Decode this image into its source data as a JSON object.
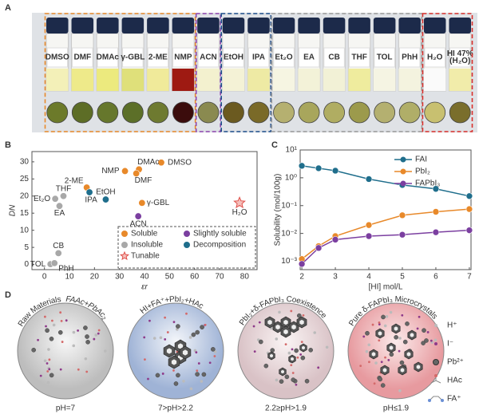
{
  "panel_a": {
    "label": "A",
    "vials": [
      [
        "DMSO"
      ],
      [
        "DMF"
      ],
      [
        "DMAc"
      ],
      [
        "γ-GBL"
      ],
      [
        "2-ME"
      ],
      [
        "NMP"
      ],
      [
        "ACN"
      ],
      [
        "EtOH"
      ],
      [
        "IPA"
      ],
      [
        "Et₂O"
      ],
      [
        "EA"
      ],
      [
        "CB"
      ],
      [
        "THF"
      ],
      [
        "TOL"
      ],
      [
        "PhH"
      ],
      [
        "H₂O"
      ],
      [
        "HI 47%",
        "(H₂O)"
      ]
    ]
  },
  "chart_data": [
    {
      "type": "scatter",
      "panel": "B",
      "xlabel": "εr",
      "ylabel": "DN",
      "xlim": [
        -5,
        85
      ],
      "xticks": [
        0,
        10,
        20,
        30,
        40,
        50,
        60,
        70,
        80
      ],
      "ylim": [
        -1.5,
        33
      ],
      "yticks": [
        0,
        5,
        10,
        15,
        20,
        25,
        30
      ],
      "series": [
        {
          "name": "Soluble",
          "color": "#e8892a",
          "marker": "circle",
          "x": [
            46.7,
            37.8,
            36.7,
            32.2,
            39,
            16.9
          ],
          "values": [
            29.8,
            27.8,
            26.6,
            27.3,
            18,
            22.5
          ],
          "labels": [
            "DMSO",
            "DMAc",
            "DMF",
            "NMP",
            "γ-GBL",
            "2-ME"
          ]
        },
        {
          "name": "Insoluble",
          "color": "#a8a8a8",
          "marker": "circle",
          "x": [
            7.6,
            4.3,
            6,
            5.6,
            2.4,
            4
          ],
          "values": [
            20,
            19.2,
            17.1,
            3.3,
            0.1,
            0.4
          ],
          "labels": [
            "THF",
            "Et₂O",
            "EA",
            "CB",
            "TOL",
            "PhH"
          ]
        },
        {
          "name": "Slightly soluble",
          "color": "#7b3fa0",
          "marker": "circle",
          "x": [
            37.5
          ],
          "values": [
            14.1
          ],
          "labels": [
            "ACN"
          ]
        },
        {
          "name": "Decomposition",
          "color": "#1f6e8c",
          "marker": "circle",
          "x": [
            24.5,
            18
          ],
          "values": [
            19,
            21.1
          ],
          "labels": [
            "EtOH",
            "IPA"
          ]
        },
        {
          "name": "Tunable",
          "color": "#e0504a",
          "marker": "star",
          "x": [
            78
          ],
          "values": [
            18
          ],
          "labels": [
            "H₂O"
          ]
        }
      ]
    },
    {
      "type": "line",
      "panel": "C",
      "xlabel": "[HI] mol/L",
      "ylabel": "Solubility (mol/100g)",
      "log_y": true,
      "x": [
        2,
        2.5,
        3,
        4,
        5,
        6,
        7
      ],
      "xlim": [
        1.95,
        7.05
      ],
      "xticks": [
        2,
        3,
        4,
        5,
        6,
        7
      ],
      "ylim": [
        0.0005,
        10
      ],
      "yticks": [
        {
          "value": 0.001,
          "label": "10⁻³"
        },
        {
          "value": 0.01,
          "label": "10⁻²"
        },
        {
          "value": 0.1,
          "label": "10⁻¹"
        },
        {
          "value": 1,
          "label": "10⁰"
        },
        {
          "value": 10,
          "label": "10¹"
        }
      ],
      "series": [
        {
          "name": "FAI",
          "color": "#1f6e8c",
          "values": [
            2.7,
            2.2,
            1.8,
            0.9,
            0.55,
            0.4,
            0.22
          ]
        },
        {
          "name": "PbI₂",
          "color": "#e8892a",
          "values": [
            0.0012,
            0.0035,
            0.008,
            0.02,
            0.045,
            0.06,
            0.075
          ]
        },
        {
          "name": "FAPbI₃",
          "color": "#7b3fa0",
          "values": [
            0.0008,
            0.003,
            0.006,
            0.008,
            0.009,
            0.011,
            0.013
          ]
        }
      ]
    }
  ],
  "panel_d": {
    "label": "D",
    "stages": [
      {
        "title": "Raw Materials",
        "subtitle": "FAAc+PbAc₂",
        "ph": "pH=7"
      },
      {
        "title": "HI+FA⁺+PbI₂+HAc",
        "ph": "7>pH>2.2"
      },
      {
        "title": "PbI₂+δ-FAPbI₃ Coexistence",
        "ph": "2.2≥pH>1.9"
      },
      {
        "title": "Pure δ-FAPbI₃ Microcrystals",
        "ph": "pH≤1.9"
      }
    ],
    "legend": [
      "H⁺",
      "I⁻",
      "Pb²⁺",
      "HAc",
      "FA⁺"
    ]
  }
}
